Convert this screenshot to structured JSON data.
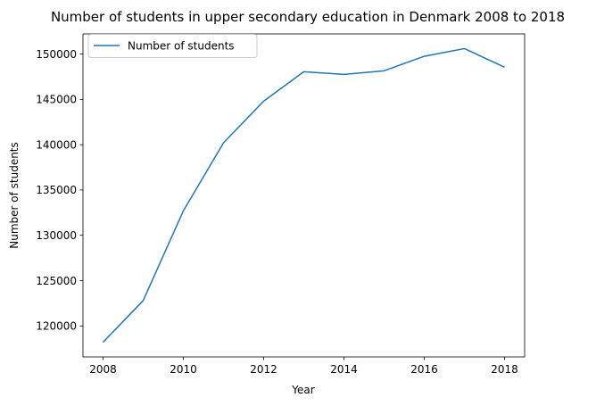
{
  "chart_data": {
    "type": "line",
    "title": "Number of students in upper secondary education in Denmark 2008 to 2018",
    "xlabel": "Year",
    "ylabel": "Number of students",
    "x": [
      2008,
      2009,
      2010,
      2011,
      2012,
      2013,
      2014,
      2015,
      2016,
      2017,
      2018
    ],
    "series": [
      {
        "name": "Number of students",
        "values": [
          118200,
          122800,
          132700,
          140200,
          144800,
          148050,
          147750,
          148150,
          149750,
          150600,
          148550
        ]
      }
    ],
    "xticks": [
      "2008",
      "2010",
      "2012",
      "2014",
      "2016",
      "2018"
    ],
    "yticks": [
      "120000",
      "125000",
      "130000",
      "135000",
      "140000",
      "145000",
      "150000"
    ],
    "xlim": [
      2007.5,
      2018.5
    ],
    "ylim": [
      116580,
      152220
    ],
    "grid": false,
    "legend_position": "top-left",
    "line_color": "#1f77b4"
  }
}
